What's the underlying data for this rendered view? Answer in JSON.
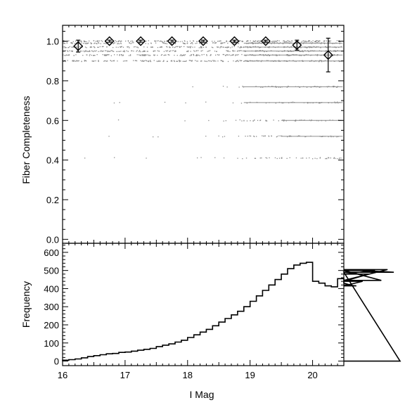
{
  "chart_data": [
    {
      "type": "scatter",
      "xlabel": "I Mag",
      "ylabel": "Fiber Completeness",
      "xlim": [
        16,
        20.5
      ],
      "ylim": [
        -0.02,
        1.08
      ],
      "xticks": [
        16,
        17,
        18,
        19,
        20
      ],
      "yticks": [
        0.0,
        0.2,
        0.4,
        0.6,
        0.8,
        1.0
      ],
      "ytick_labels": [
        "0.0",
        "0.2",
        "0.4",
        "0.6",
        "0.8",
        "1.0"
      ],
      "binned_completeness": {
        "x": [
          16.25,
          16.75,
          17.25,
          17.75,
          18.25,
          18.75,
          19.25,
          19.75,
          20.25
        ],
        "y": [
          0.975,
          1.0,
          1.0,
          1.0,
          1.0,
          1.0,
          1.0,
          0.98,
          0.93
        ],
        "err": [
          0.03,
          0.005,
          0.005,
          0.005,
          0.005,
          0.005,
          0.005,
          0.025,
          0.085
        ]
      },
      "field_points_levels": [
        1.0,
        0.99,
        0.97,
        0.95,
        0.93,
        0.9,
        0.77,
        0.69,
        0.6,
        0.52,
        0.41
      ],
      "colors": {
        "points": "#8c8c8c",
        "markers": "#000000"
      }
    },
    {
      "type": "histogram",
      "xlabel": "I Mag",
      "ylabel": "Frequency",
      "xlim": [
        16,
        20.5
      ],
      "ylim": [
        -25,
        650
      ],
      "xticks": [
        16,
        17,
        18,
        19,
        20
      ],
      "yticks": [
        0,
        100,
        200,
        300,
        400,
        500,
        600
      ],
      "bin_width": 0.1,
      "bin_start": 16.0,
      "values": [
        5,
        8,
        12,
        18,
        25,
        30,
        35,
        40,
        42,
        48,
        50,
        55,
        60,
        65,
        70,
        80,
        88,
        95,
        105,
        115,
        130,
        145,
        160,
        175,
        195,
        215,
        235,
        255,
        275,
        300,
        330,
        360,
        390,
        420,
        450,
        480,
        510,
        530,
        540,
        545,
        440,
        430,
        415,
        410,
        455,
        430,
        420,
        415,
        440,
        480,
        500,
        445,
        505,
        490,
        0
      ]
    }
  ]
}
